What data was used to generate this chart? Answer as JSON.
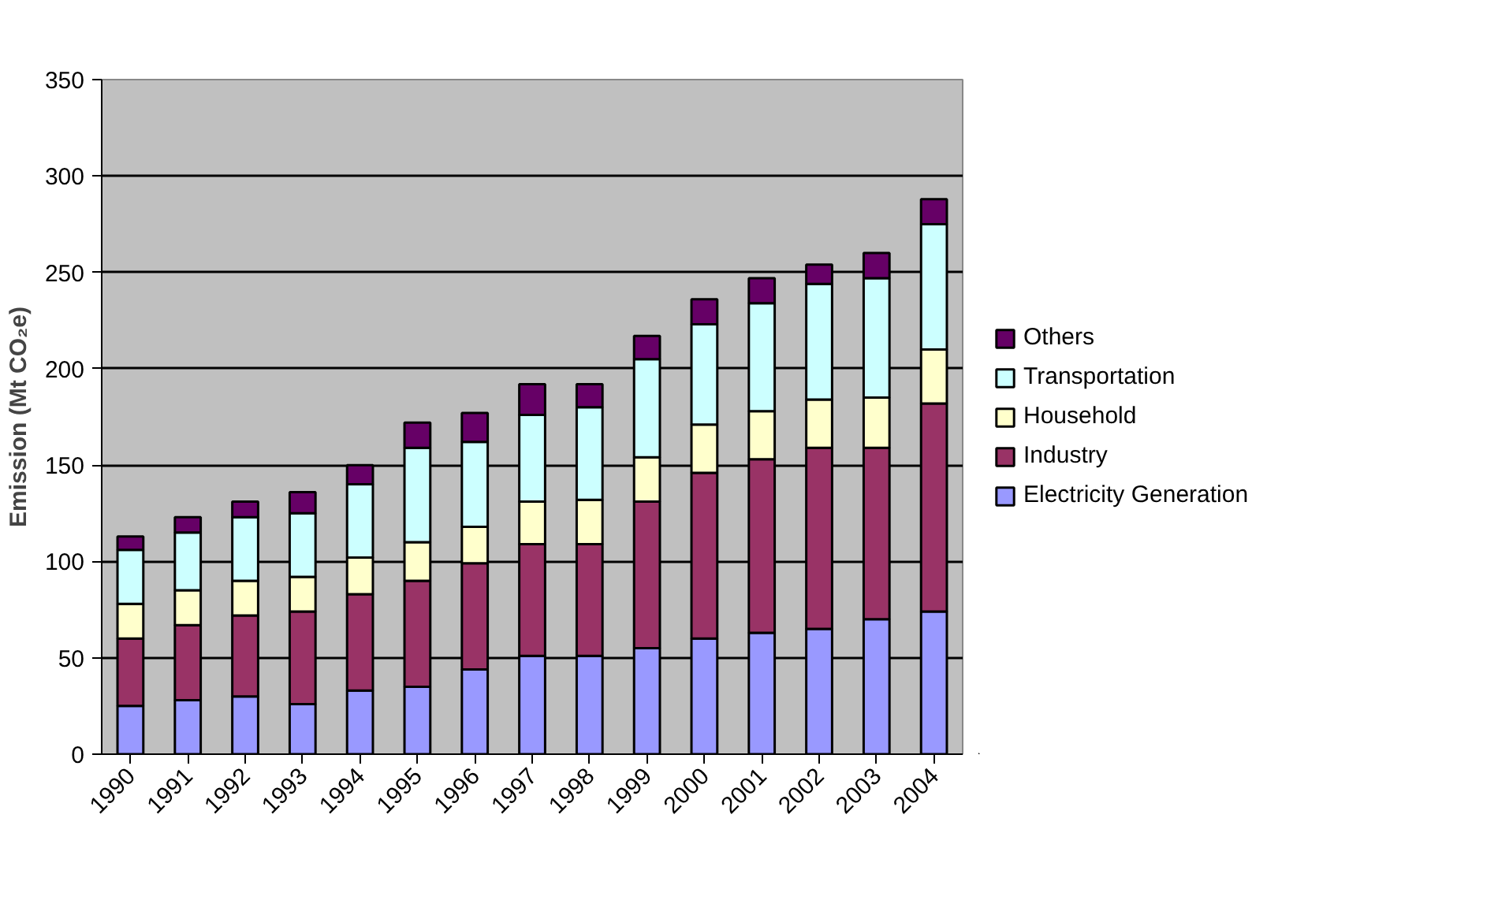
{
  "chart_data": {
    "type": "bar",
    "stacked": true,
    "ylabel": "Emission (Mt CO₂e)",
    "categories": [
      "1990",
      "1991",
      "1992",
      "1993",
      "1994",
      "1995",
      "1996",
      "1997",
      "1998",
      "1999",
      "2000",
      "2001",
      "2002",
      "2003",
      "2004"
    ],
    "series": [
      {
        "name": "Electricity Generation",
        "color": "#9999ff",
        "values": [
          25,
          28,
          30,
          26,
          33,
          35,
          44,
          51,
          51,
          55,
          60,
          63,
          65,
          70,
          74
        ]
      },
      {
        "name": "Industry",
        "color": "#993366",
        "values": [
          35,
          39,
          42,
          48,
          50,
          55,
          55,
          58,
          58,
          76,
          86,
          90,
          94,
          89,
          108
        ]
      },
      {
        "name": "Household",
        "color": "#ffffcc",
        "values": [
          18,
          18,
          18,
          18,
          19,
          20,
          19,
          22,
          23,
          23,
          25,
          25,
          25,
          26,
          28
        ]
      },
      {
        "name": "Transportation",
        "color": "#ccffff",
        "values": [
          28,
          30,
          33,
          33,
          38,
          49,
          44,
          45,
          48,
          51,
          52,
          56,
          60,
          62,
          65
        ]
      },
      {
        "name": "Others",
        "color": "#660066",
        "values": [
          7,
          8,
          8,
          11,
          10,
          13,
          15,
          16,
          12,
          12,
          13,
          13,
          10,
          13,
          13
        ]
      }
    ],
    "ylim": [
      0,
      350
    ],
    "yticks": [
      0,
      50,
      100,
      150,
      200,
      250,
      300,
      350
    ],
    "grid": "y",
    "legend": "right"
  }
}
